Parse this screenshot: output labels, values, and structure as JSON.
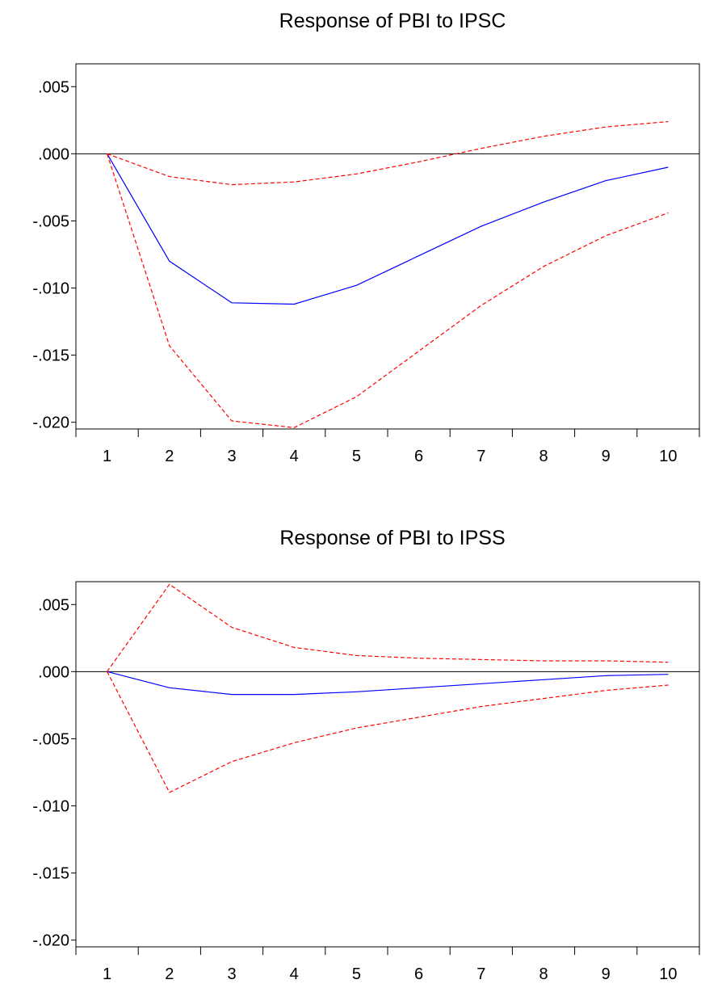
{
  "chart_data": [
    {
      "type": "line",
      "title": "Response of PBI to IPSC",
      "x": [
        1,
        2,
        3,
        4,
        5,
        6,
        7,
        8,
        9,
        10
      ],
      "x_tick_labels": [
        "1",
        "2",
        "3",
        "4",
        "5",
        "6",
        "7",
        "8",
        "9",
        "10"
      ],
      "ylim": [
        -0.0205,
        0.0067
      ],
      "y_ticks": [
        0.005,
        0.0,
        -0.005,
        -0.01,
        -0.015,
        -0.02
      ],
      "y_tick_labels": [
        ".005",
        ".000",
        "-.005",
        "-.010",
        "-.015",
        "-.020"
      ],
      "zero_line": true,
      "grid": false,
      "series": [
        {
          "style": "response",
          "color": "#0000ff",
          "dashed": false,
          "values": [
            0.0,
            -0.008,
            -0.0111,
            -0.0112,
            -0.0098,
            -0.0076,
            -0.0054,
            -0.0036,
            -0.002,
            -0.001
          ]
        },
        {
          "style": "upper-band",
          "color": "#ff0000",
          "dashed": true,
          "values": [
            0.0,
            -0.0017,
            -0.0023,
            -0.0021,
            -0.0015,
            -0.0006,
            0.0004,
            0.0013,
            0.002,
            0.0024
          ]
        },
        {
          "style": "lower-band",
          "color": "#ff0000",
          "dashed": true,
          "values": [
            0.0,
            -0.0143,
            -0.0199,
            -0.0204,
            -0.0181,
            -0.0147,
            -0.0113,
            -0.0084,
            -0.0061,
            -0.0044
          ]
        }
      ]
    },
    {
      "type": "line",
      "title": "Response of PBI to IPSS",
      "x": [
        1,
        2,
        3,
        4,
        5,
        6,
        7,
        8,
        9,
        10
      ],
      "x_tick_labels": [
        "1",
        "2",
        "3",
        "4",
        "5",
        "6",
        "7",
        "8",
        "9",
        "10"
      ],
      "ylim": [
        -0.0205,
        0.0067
      ],
      "y_ticks": [
        0.005,
        0.0,
        -0.005,
        -0.01,
        -0.015,
        -0.02
      ],
      "y_tick_labels": [
        ".005",
        ".000",
        "-.005",
        "-.010",
        "-.015",
        "-.020"
      ],
      "zero_line": true,
      "grid": false,
      "series": [
        {
          "style": "response",
          "color": "#0000ff",
          "dashed": false,
          "values": [
            0.0,
            -0.0012,
            -0.0017,
            -0.0017,
            -0.0015,
            -0.0012,
            -0.0009,
            -0.0006,
            -0.0003,
            -0.0002
          ]
        },
        {
          "style": "upper-band",
          "color": "#ff0000",
          "dashed": true,
          "values": [
            0.0,
            0.0065,
            0.0033,
            0.0018,
            0.0012,
            0.001,
            0.0009,
            0.0008,
            0.0008,
            0.0007
          ]
        },
        {
          "style": "lower-band",
          "color": "#ff0000",
          "dashed": true,
          "values": [
            0.0,
            -0.009,
            -0.0067,
            -0.0053,
            -0.0042,
            -0.0034,
            -0.0026,
            -0.002,
            -0.0014,
            -0.001
          ]
        }
      ]
    }
  ]
}
